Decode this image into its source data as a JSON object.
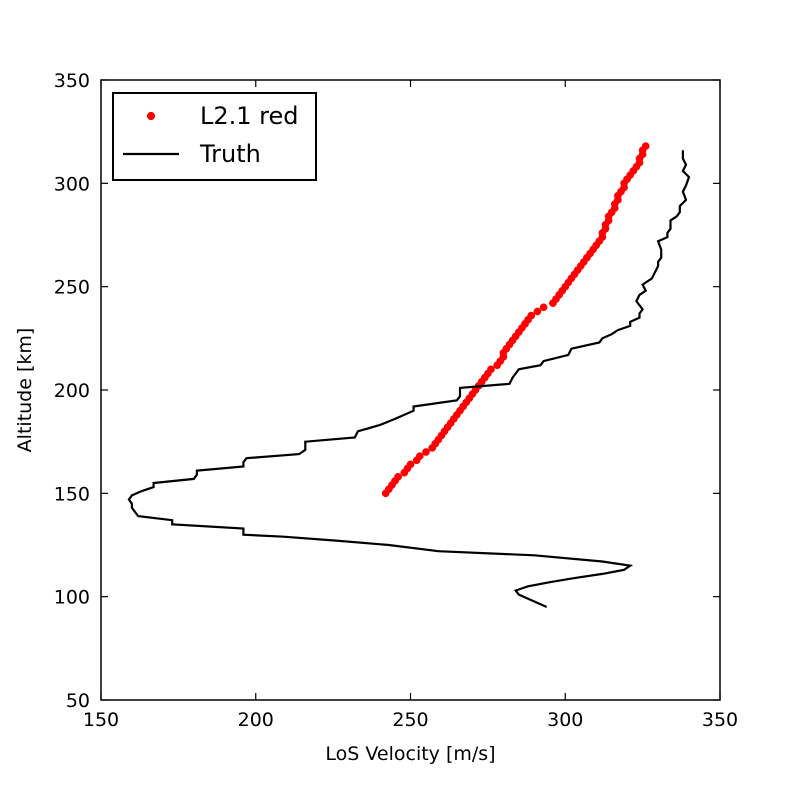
{
  "chart_data": {
    "type": "scatter",
    "title": "",
    "xlabel": "LoS Velocity [m/s]",
    "ylabel": "Altitude [km]",
    "xlim": [
      150,
      350
    ],
    "ylim": [
      50,
      350
    ],
    "xticks": [
      150,
      200,
      250,
      300,
      350
    ],
    "yticks": [
      50,
      100,
      150,
      200,
      250,
      300,
      350
    ],
    "grid": false,
    "legend_placement": "top-left",
    "series": [
      {
        "name": "L2.1 red",
        "kind": "markers",
        "color": "#ff0000",
        "points": [
          [
            242,
            150
          ],
          [
            243,
            152
          ],
          [
            244,
            154
          ],
          [
            245,
            156
          ],
          [
            246,
            158
          ],
          [
            248,
            160
          ],
          [
            249,
            162
          ],
          [
            250,
            164
          ],
          [
            252,
            166
          ],
          [
            253,
            168
          ],
          [
            255,
            170
          ],
          [
            257,
            172
          ],
          [
            258,
            174
          ],
          [
            259,
            176
          ],
          [
            260,
            178
          ],
          [
            261,
            180
          ],
          [
            262,
            182
          ],
          [
            263,
            184
          ],
          [
            264,
            186
          ],
          [
            265,
            188
          ],
          [
            266,
            190
          ],
          [
            267,
            192
          ],
          [
            268,
            194
          ],
          [
            269,
            196
          ],
          [
            270,
            198
          ],
          [
            271,
            200
          ],
          [
            272,
            202
          ],
          [
            273,
            204
          ],
          [
            274,
            206
          ],
          [
            275,
            208
          ],
          [
            276,
            210
          ],
          [
            278,
            212
          ],
          [
            279,
            214
          ],
          [
            280,
            216
          ],
          [
            280,
            218
          ],
          [
            281,
            220
          ],
          [
            282,
            222
          ],
          [
            283,
            224
          ],
          [
            284,
            226
          ],
          [
            285,
            228
          ],
          [
            286,
            230
          ],
          [
            287,
            232
          ],
          [
            288,
            234
          ],
          [
            289,
            236
          ],
          [
            291,
            238
          ],
          [
            293,
            240
          ],
          [
            296,
            242
          ],
          [
            297,
            244
          ],
          [
            298,
            246
          ],
          [
            299,
            248
          ],
          [
            300,
            250
          ],
          [
            301,
            252
          ],
          [
            302,
            254
          ],
          [
            303,
            256
          ],
          [
            304,
            258
          ],
          [
            305,
            260
          ],
          [
            306,
            262
          ],
          [
            307,
            264
          ],
          [
            308,
            266
          ],
          [
            309,
            268
          ],
          [
            310,
            270
          ],
          [
            311,
            272
          ],
          [
            312,
            274
          ],
          [
            312,
            276
          ],
          [
            313,
            278
          ],
          [
            313,
            280
          ],
          [
            314,
            282
          ],
          [
            314,
            284
          ],
          [
            315,
            286
          ],
          [
            316,
            288
          ],
          [
            316,
            290
          ],
          [
            317,
            292
          ],
          [
            317,
            294
          ],
          [
            318,
            296
          ],
          [
            319,
            298
          ],
          [
            319,
            300
          ],
          [
            320,
            302
          ],
          [
            321,
            304
          ],
          [
            322,
            306
          ],
          [
            323,
            308
          ],
          [
            324,
            310
          ],
          [
            324,
            312
          ],
          [
            325,
            314
          ],
          [
            325,
            316
          ],
          [
            326,
            318
          ]
        ]
      },
      {
        "name": "Truth",
        "kind": "line",
        "color": "#000000",
        "points": [
          [
            294,
            95
          ],
          [
            285,
            101
          ],
          [
            284,
            103
          ],
          [
            288,
            105
          ],
          [
            295,
            107
          ],
          [
            303,
            109
          ],
          [
            312,
            111
          ],
          [
            319,
            113
          ],
          [
            321,
            115
          ],
          [
            312,
            117
          ],
          [
            290,
            120
          ],
          [
            259,
            122
          ],
          [
            243,
            125
          ],
          [
            227,
            127
          ],
          [
            209,
            129
          ],
          [
            196,
            130
          ],
          [
            196,
            133
          ],
          [
            173,
            135
          ],
          [
            173,
            137
          ],
          [
            162,
            139
          ],
          [
            161,
            141
          ],
          [
            160,
            143
          ],
          [
            160,
            145
          ],
          [
            159,
            147
          ],
          [
            160,
            149
          ],
          [
            163,
            151
          ],
          [
            167,
            153
          ],
          [
            167,
            155
          ],
          [
            180,
            157
          ],
          [
            181,
            159
          ],
          [
            181,
            161
          ],
          [
            196,
            163
          ],
          [
            196,
            165
          ],
          [
            197,
            167
          ],
          [
            214,
            169
          ],
          [
            216,
            171
          ],
          [
            216,
            173
          ],
          [
            216,
            175
          ],
          [
            232,
            177
          ],
          [
            233,
            180
          ],
          [
            240,
            183
          ],
          [
            245,
            186
          ],
          [
            251,
            190
          ],
          [
            251,
            192
          ],
          [
            265,
            195
          ],
          [
            266,
            197
          ],
          [
            266,
            199
          ],
          [
            266,
            201
          ],
          [
            282,
            203
          ],
          [
            283,
            206
          ],
          [
            284,
            208
          ],
          [
            285,
            210
          ],
          [
            292,
            212
          ],
          [
            293,
            214
          ],
          [
            301,
            217
          ],
          [
            302,
            220
          ],
          [
            311,
            223
          ],
          [
            312,
            225
          ],
          [
            315,
            227
          ],
          [
            317,
            229
          ],
          [
            321,
            231
          ],
          [
            321,
            233
          ],
          [
            324,
            235
          ],
          [
            324,
            237
          ],
          [
            325,
            239
          ],
          [
            323,
            243
          ],
          [
            324,
            246
          ],
          [
            326,
            248
          ],
          [
            325,
            251
          ],
          [
            328,
            254
          ],
          [
            329,
            257
          ],
          [
            330,
            260
          ],
          [
            330,
            262
          ],
          [
            331,
            264
          ],
          [
            331,
            268
          ],
          [
            330,
            272
          ],
          [
            333,
            274
          ],
          [
            333,
            276
          ],
          [
            334,
            278
          ],
          [
            334,
            280
          ],
          [
            334,
            282
          ],
          [
            336,
            284
          ],
          [
            337,
            286
          ],
          [
            337,
            289
          ],
          [
            339,
            292
          ],
          [
            338,
            296
          ],
          [
            339,
            299
          ],
          [
            340,
            303
          ],
          [
            338,
            306
          ],
          [
            339,
            309
          ],
          [
            338,
            312
          ],
          [
            338,
            316
          ]
        ]
      }
    ]
  }
}
